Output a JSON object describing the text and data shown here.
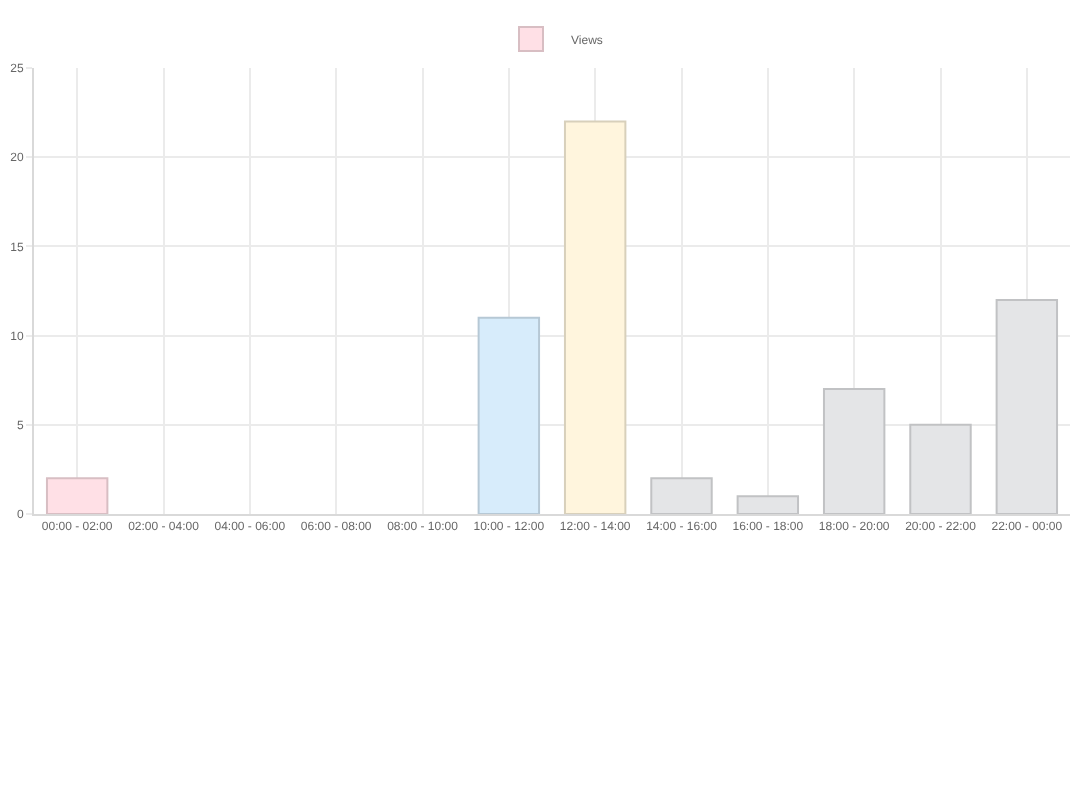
{
  "chart_data": {
    "type": "bar",
    "categories": [
      "00:00 - 02:00",
      "02:00 - 04:00",
      "04:00 - 06:00",
      "06:00 - 08:00",
      "08:00 - 10:00",
      "10:00 - 12:00",
      "12:00 - 14:00",
      "14:00 - 16:00",
      "16:00 - 18:00",
      "18:00 - 20:00",
      "20:00 - 22:00",
      "22:00 - 00:00"
    ],
    "series": [
      {
        "name": "Views",
        "values": [
          2,
          0,
          0,
          0,
          0,
          11,
          22,
          2,
          1,
          7,
          5,
          12
        ],
        "colors": [
          "#ffe0e6",
          "#ffe0e6",
          "#ffe0e6",
          "#ffe0e6",
          "#ffe0e6",
          "#d7ecfb",
          "#fff5dd",
          "#e4e5e7",
          "#e4e5e7",
          "#e4e5e7",
          "#e4e5e7",
          "#e4e5e7"
        ]
      }
    ],
    "ylim": [
      0,
      25
    ],
    "yticks": [
      0,
      5,
      10,
      15,
      20,
      25
    ],
    "grid": true,
    "legend": "top"
  }
}
